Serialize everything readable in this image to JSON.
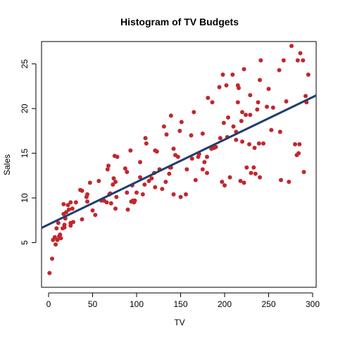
{
  "chart_data": {
    "type": "scatter",
    "title": "Histogram of TV Budgets",
    "xlabel": "TV",
    "ylabel": "Sales",
    "xlim": [
      -8,
      304
    ],
    "ylim": [
      0,
      27.5
    ],
    "xticks": [
      0,
      50,
      100,
      150,
      200,
      250,
      300
    ],
    "yticks": [
      5,
      10,
      15,
      20,
      25
    ],
    "grid": false,
    "legend": "none",
    "point_color": "#C1272D",
    "line_color": "#1F3F6E",
    "regression_line": {
      "intercept": 7.03,
      "slope": 0.0475
    },
    "points": [
      [
        1,
        1.6
      ],
      [
        4,
        3.2
      ],
      [
        5,
        5.3
      ],
      [
        7,
        5.6
      ],
      [
        8,
        4.8
      ],
      [
        10,
        5.3
      ],
      [
        12,
        5.7
      ],
      [
        9,
        6.6
      ],
      [
        11,
        7.2
      ],
      [
        13,
        5.9
      ],
      [
        14,
        5.5
      ],
      [
        16,
        6.6
      ],
      [
        17,
        8.2
      ],
      [
        17,
        9.3
      ],
      [
        18,
        7.0
      ],
      [
        18,
        6.7
      ],
      [
        19,
        7.7
      ],
      [
        20,
        8.4
      ],
      [
        22,
        9.2
      ],
      [
        23,
        8.7
      ],
      [
        25,
        9.5
      ],
      [
        25,
        6.9
      ],
      [
        25,
        7.2
      ],
      [
        27,
        8.8
      ],
      [
        28,
        7.3
      ],
      [
        31,
        9.5
      ],
      [
        36,
        10.9
      ],
      [
        38,
        10.8
      ],
      [
        38,
        7.6
      ],
      [
        43,
        10.1
      ],
      [
        44,
        10.4
      ],
      [
        44,
        9.6
      ],
      [
        47,
        11.7
      ],
      [
        50,
        8.6
      ],
      [
        53,
        8.1
      ],
      [
        57,
        11.9
      ],
      [
        60,
        9.7
      ],
      [
        63,
        9.7
      ],
      [
        66,
        9.5
      ],
      [
        67,
        13.2
      ],
      [
        68,
        13.6
      ],
      [
        69,
        10.4
      ],
      [
        70,
        10.5
      ],
      [
        71,
        9.4
      ],
      [
        73,
        11.5
      ],
      [
        74,
        12.2
      ],
      [
        75,
        14.7
      ],
      [
        76,
        11.8
      ],
      [
        76,
        8.8
      ],
      [
        77,
        10.1
      ],
      [
        78,
        14.6
      ],
      [
        87,
        13.3
      ],
      [
        89,
        12.9
      ],
      [
        89,
        10.6
      ],
      [
        90,
        8.7
      ],
      [
        93,
        15.3
      ],
      [
        94,
        9.6
      ],
      [
        95,
        11.4
      ],
      [
        96,
        9.7
      ],
      [
        97,
        9.5
      ],
      [
        98,
        9.7
      ],
      [
        100,
        10.6
      ],
      [
        104,
        12.3
      ],
      [
        104,
        14.0
      ],
      [
        107,
        10.4
      ],
      [
        109,
        11.5
      ],
      [
        110,
        16.7
      ],
      [
        111,
        16.1
      ],
      [
        114,
        11.9
      ],
      [
        117,
        12.2
      ],
      [
        120,
        12.8
      ],
      [
        121,
        11.2
      ],
      [
        121,
        15.3
      ],
      [
        123,
        15.2
      ],
      [
        126,
        13.2
      ],
      [
        129,
        11.0
      ],
      [
        131,
        18.0
      ],
      [
        133,
        11.8
      ],
      [
        134,
        17.1
      ],
      [
        137,
        12.7
      ],
      [
        138,
        13.4
      ],
      [
        139,
        13.4
      ],
      [
        139,
        19.2
      ],
      [
        142,
        15.5
      ],
      [
        142,
        10.4
      ],
      [
        144,
        14.8
      ],
      [
        147,
        14.6
      ],
      [
        149,
        17.5
      ],
      [
        150,
        10.1
      ],
      [
        151,
        18.5
      ],
      [
        156,
        10.4
      ],
      [
        157,
        13.2
      ],
      [
        162,
        17.0
      ],
      [
        163,
        14.4
      ],
      [
        165,
        19.6
      ],
      [
        167,
        12.0
      ],
      [
        170,
        14.6
      ],
      [
        171,
        14.9
      ],
      [
        175,
        17.2
      ],
      [
        175,
        13.2
      ],
      [
        177,
        14.0
      ],
      [
        180,
        12.8
      ],
      [
        180,
        14.6
      ],
      [
        181,
        21.2
      ],
      [
        185,
        15.5
      ],
      [
        186,
        20.7
      ],
      [
        188,
        15.6
      ],
      [
        190,
        15.7
      ],
      [
        194,
        22.4
      ],
      [
        195,
        16.7
      ],
      [
        197,
        11.8
      ],
      [
        198,
        23.8
      ],
      [
        199,
        18.4
      ],
      [
        200,
        11.4
      ],
      [
        202,
        22.6
      ],
      [
        203,
        16.8
      ],
      [
        204,
        19.0
      ],
      [
        206,
        12.3
      ],
      [
        209,
        23.8
      ],
      [
        210,
        18.0
      ],
      [
        213,
        17.4
      ],
      [
        213,
        16.5
      ],
      [
        215,
        22.6
      ],
      [
        215,
        20.7
      ],
      [
        216,
        22.3
      ],
      [
        218,
        11.9
      ],
      [
        219,
        18.6
      ],
      [
        220,
        16.3
      ],
      [
        220,
        19.6
      ],
      [
        222,
        24.4
      ],
      [
        222,
        11.7
      ],
      [
        224,
        19.3
      ],
      [
        225,
        13.4
      ],
      [
        228,
        16.0
      ],
      [
        229,
        21.5
      ],
      [
        229,
        19.3
      ],
      [
        230,
        12.8
      ],
      [
        233,
        13.4
      ],
      [
        234,
        15.6
      ],
      [
        235,
        12.7
      ],
      [
        237,
        19.9
      ],
      [
        238,
        20.7
      ],
      [
        239,
        16.1
      ],
      [
        240,
        23.2
      ],
      [
        240,
        12.3
      ],
      [
        241,
        25.4
      ],
      [
        244,
        16.1
      ],
      [
        248,
        20.2
      ],
      [
        250,
        22.2
      ],
      [
        253,
        17.6
      ],
      [
        255,
        20.1
      ],
      [
        262,
        24.3
      ],
      [
        263,
        17.4
      ],
      [
        264,
        12.0
      ],
      [
        267,
        25.4
      ],
      [
        270,
        20.8
      ],
      [
        273,
        11.8
      ],
      [
        276,
        27.0
      ],
      [
        280,
        16.0
      ],
      [
        282,
        14.8
      ],
      [
        283,
        25.4
      ],
      [
        284,
        15.0
      ],
      [
        285,
        16.0
      ],
      [
        286,
        26.2
      ],
      [
        289,
        25.4
      ],
      [
        290,
        12.9
      ],
      [
        292,
        21.4
      ],
      [
        293,
        20.7
      ],
      [
        295,
        23.8
      ]
    ]
  }
}
